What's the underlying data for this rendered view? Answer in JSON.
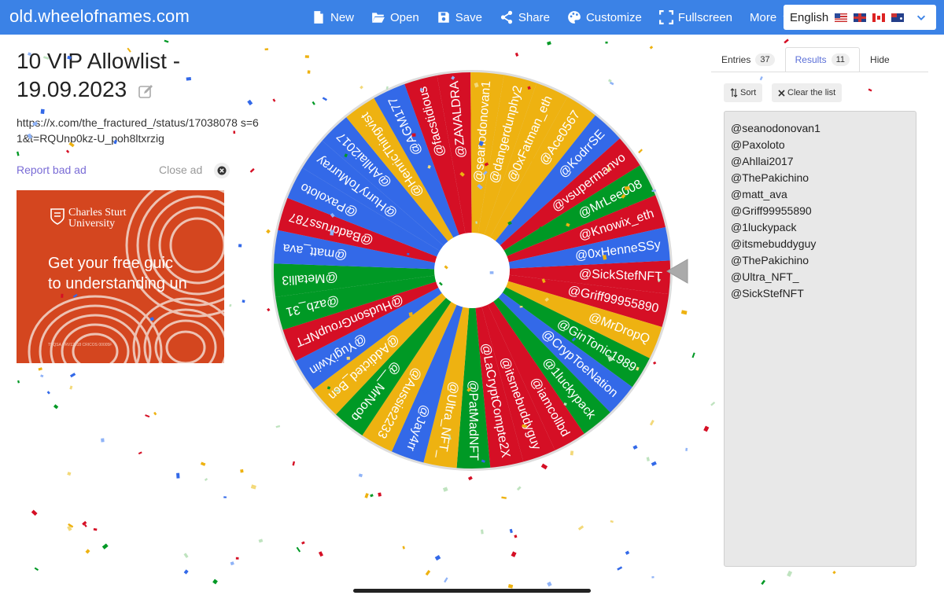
{
  "navbar": {
    "brand": "old.wheelofnames.com",
    "items": [
      {
        "label": "New",
        "icon": "file-icon"
      },
      {
        "label": "Open",
        "icon": "folder-open-icon"
      },
      {
        "label": "Save",
        "icon": "save-icon"
      },
      {
        "label": "Share",
        "icon": "share-icon"
      },
      {
        "label": "Customize",
        "icon": "palette-icon"
      },
      {
        "label": "Fullscreen",
        "icon": "fullscreen-icon"
      },
      {
        "label": "More",
        "icon": "chevron-down-icon"
      }
    ],
    "language": "English"
  },
  "wheel_title": "10 VIP Allowlist - 19.09.2023",
  "description": "https://x.com/the_fractured_/status/17038078 s=61&t=RQUnp0kz-U_poh8ltxrzig",
  "ad": {
    "report_label": "Report bad ad",
    "close_label": "Close ad",
    "logo_line1": "Charles Sturt",
    "logo_line2": "University",
    "headline_line1": "Get your free guic",
    "headline_line2": "to understanding un",
    "fine_print": "TEQSA PRV12018 CRICOS 00005F"
  },
  "wheel": {
    "colors": {
      "blue": "#3369e8",
      "red": "#d50f25",
      "green": "#009925",
      "yellow": "#eeb211"
    },
    "entries": [
      "@SickStefNFT",
      "@Griff99955890",
      "@MrDropQ",
      "@GinTonic1989",
      "@CrypToeNation",
      "@1luckypack",
      "@iamcollbd",
      "@itsmebuddyguy",
      "@LaCryptCompte2X",
      "@PatMadNFT",
      "@Ultra_NFT_",
      "@Jay4rr",
      "@Aussie2233",
      "@__MrNoob",
      "@Addicted_Bcn",
      "@YugiXwin",
      "@HudsonGroupNFT",
      "@azb_31",
      "@Metalli3",
      "@matt_ava",
      "@Baddruss787",
      "@Paxoloto",
      "@HurryToMurray",
      "@Ahllai2017",
      "@HenricThingvist",
      "@AGM177",
      "@facstidious",
      "@ZAVALDRA",
      "@seanodonovan1",
      "@dangerdunphy2",
      "@0xFatman_eth",
      "@Ace0567",
      "@KodrrSE",
      "@vsupermanvo",
      "@MrLee008",
      "@Knowix_eth",
      "@0xHenneSSy"
    ],
    "segment_colors": [
      "red",
      "red",
      "yellow",
      "green",
      "blue",
      "green",
      "red",
      "red",
      "red",
      "green",
      "yellow",
      "blue",
      "yellow",
      "green",
      "yellow",
      "blue",
      "red",
      "green",
      "green",
      "blue",
      "red",
      "blue",
      "blue",
      "blue",
      "yellow",
      "blue",
      "red",
      "red",
      "yellow",
      "yellow",
      "yellow",
      "yellow",
      "blue",
      "red",
      "green",
      "red",
      "blue"
    ]
  },
  "sidebar": {
    "tabs": [
      {
        "label": "Entries",
        "count": "37"
      },
      {
        "label": "Results",
        "count": "11"
      },
      {
        "label": "Hide",
        "count": ""
      }
    ],
    "sort_label": "Sort",
    "clear_label": "Clear the list",
    "results": [
      "@seanodonovan1",
      "@Paxoloto",
      "@Ahllai2017",
      "@ThePakichino",
      "@matt_ava",
      "@Griff99955890",
      "@1luckypack",
      "@itsmebuddyguy",
      "@ThePakichino",
      "@Ultra_NFT_",
      "@SickStefNFT"
    ]
  }
}
